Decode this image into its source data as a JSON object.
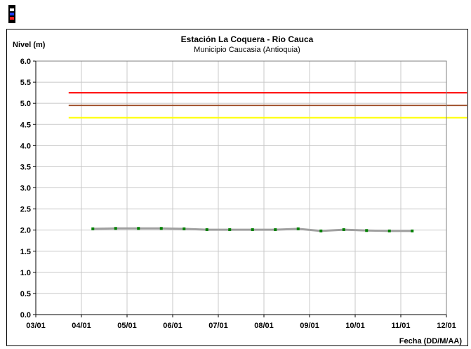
{
  "chart_data": {
    "type": "line",
    "title": "Estación La Coquera - Rio Cauca",
    "subtitle": "Municipio Caucasia (Antioquia)",
    "ylabel": "Nivel (m)",
    "xlabel": "Fecha (DD/M/AA)",
    "ylim": [
      0.0,
      6.0
    ],
    "yticks": [
      "0.0",
      "0.5",
      "1.0",
      "1.5",
      "2.0",
      "2.5",
      "3.0",
      "3.5",
      "4.0",
      "4.5",
      "5.0",
      "5.5",
      "6.0"
    ],
    "xticks": [
      "03/01",
      "04/01",
      "05/01",
      "06/01",
      "07/01",
      "08/01",
      "09/01",
      "10/01",
      "11/01",
      "12/01"
    ],
    "grid": true,
    "thresholds": [
      {
        "value": 5.25,
        "color": "#ff0000",
        "x_range": [
          0.72,
          9.45
        ]
      },
      {
        "value": 4.95,
        "color": "#a0522d",
        "x_range": [
          0.72,
          9.45
        ]
      },
      {
        "value": 4.66,
        "color": "#ffff00",
        "x_range": [
          0.72,
          9.45
        ]
      }
    ],
    "series": [
      {
        "line_color": "#a0a0a0",
        "marker_color": "#008000",
        "x": [
          1.25,
          1.75,
          2.25,
          2.75,
          3.25,
          3.75,
          4.25,
          4.75,
          5.25,
          5.75,
          6.25,
          6.75,
          7.25,
          7.75,
          8.25
        ],
        "values": [
          2.03,
          2.04,
          2.04,
          2.04,
          2.03,
          2.01,
          2.01,
          2.01,
          2.01,
          2.03,
          1.98,
          2.01,
          1.99,
          1.98,
          1.98
        ]
      }
    ]
  }
}
